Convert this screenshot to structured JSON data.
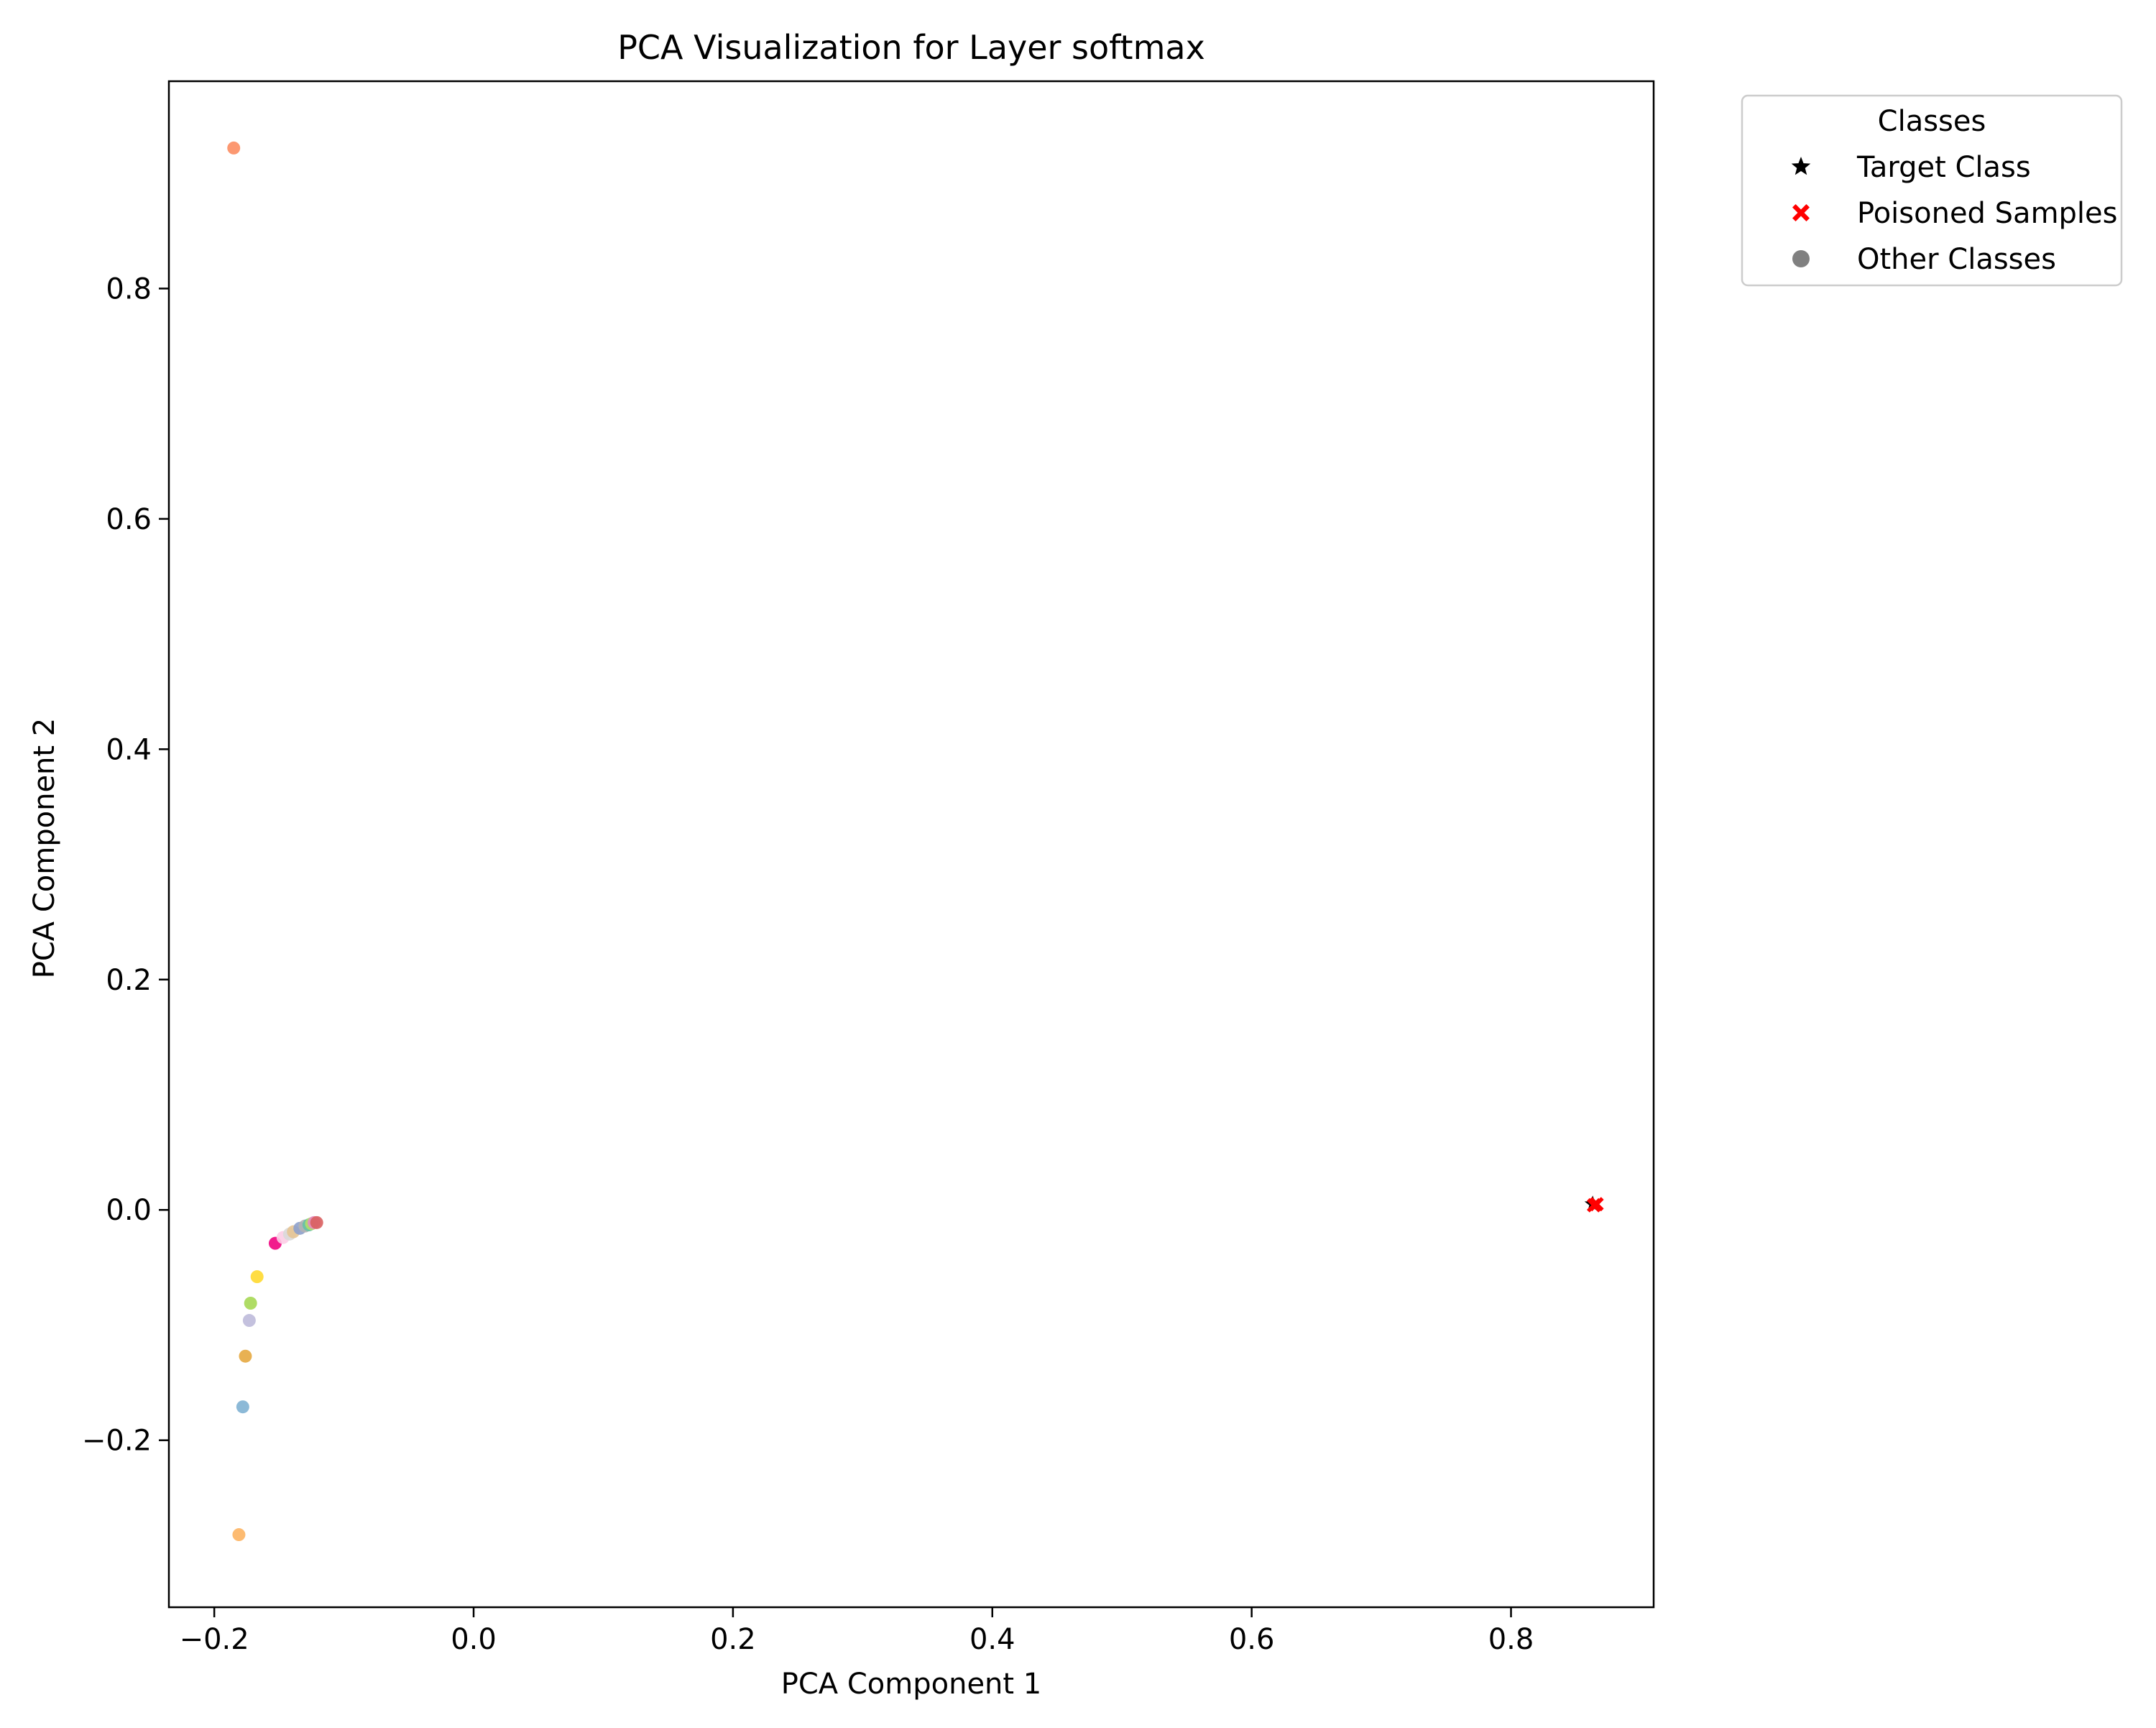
{
  "chart_data": {
    "type": "scatter",
    "title": "PCA Visualization for Layer softmax",
    "xlabel": "PCA Component 1",
    "ylabel": "PCA Component 2",
    "xlim": [
      -0.235,
      0.91
    ],
    "ylim": [
      -0.345,
      0.98
    ],
    "x_ticks": [
      -0.2,
      0.0,
      0.2,
      0.4,
      0.6,
      0.8
    ],
    "x_tick_labels": [
      "−0.2",
      "0.0",
      "0.2",
      "0.4",
      "0.6",
      "0.8"
    ],
    "y_ticks": [
      -0.2,
      0.0,
      0.2,
      0.4,
      0.6,
      0.8
    ],
    "y_tick_labels": [
      "−0.2",
      "0.0",
      "0.2",
      "0.4",
      "0.6",
      "0.8"
    ],
    "grid": false,
    "legend": {
      "title": "Classes",
      "placement": "outside-upper-right",
      "entries": [
        {
          "label": "Target Class",
          "marker": "star",
          "color": "#000000"
        },
        {
          "label": "Poisoned Samples",
          "marker": "x",
          "color": "#ff0000"
        },
        {
          "label": "Other Classes",
          "marker": "circle",
          "color": "#808080"
        }
      ]
    },
    "series": [
      {
        "name": "Other Classes",
        "marker": "circle",
        "points": [
          {
            "x": -0.185,
            "y": 0.922,
            "color": "#fc8d62"
          },
          {
            "x": -0.181,
            "y": -0.282,
            "color": "#fdb462"
          },
          {
            "x": -0.178,
            "y": -0.171,
            "color": "#80b1d3"
          },
          {
            "x": -0.176,
            "y": -0.127,
            "color": "#e5a840"
          },
          {
            "x": -0.173,
            "y": -0.096,
            "color": "#bebada"
          },
          {
            "x": -0.172,
            "y": -0.081,
            "color": "#a6d854"
          },
          {
            "x": -0.167,
            "y": -0.058,
            "color": "#ffd92f"
          },
          {
            "x": -0.153,
            "y": -0.029,
            "color": "#f0027f"
          },
          {
            "x": -0.147,
            "y": -0.024,
            "color": "#fccde5"
          },
          {
            "x": -0.142,
            "y": -0.021,
            "color": "#d9d9d9"
          },
          {
            "x": -0.139,
            "y": -0.019,
            "color": "#e5c494"
          },
          {
            "x": -0.134,
            "y": -0.016,
            "color": "#8da0cb"
          },
          {
            "x": -0.13,
            "y": -0.014,
            "color": "#b3b3b3"
          },
          {
            "x": -0.127,
            "y": -0.013,
            "color": "#66c2a5"
          },
          {
            "x": -0.125,
            "y": -0.012,
            "color": "#b3de69"
          },
          {
            "x": -0.123,
            "y": -0.011,
            "color": "#e78ac3"
          },
          {
            "x": -0.121,
            "y": -0.011,
            "color": "#d95f5f"
          }
        ]
      },
      {
        "name": "Target Class",
        "marker": "star",
        "points": [
          {
            "x": 0.863,
            "y": 0.005,
            "color": "#000000"
          }
        ]
      },
      {
        "name": "Poisoned Samples",
        "marker": "x",
        "points": [
          {
            "x": 0.864,
            "y": 0.004,
            "color": "#ff0000"
          },
          {
            "x": 0.866,
            "y": 0.005,
            "color": "#ff0000"
          }
        ]
      }
    ]
  }
}
